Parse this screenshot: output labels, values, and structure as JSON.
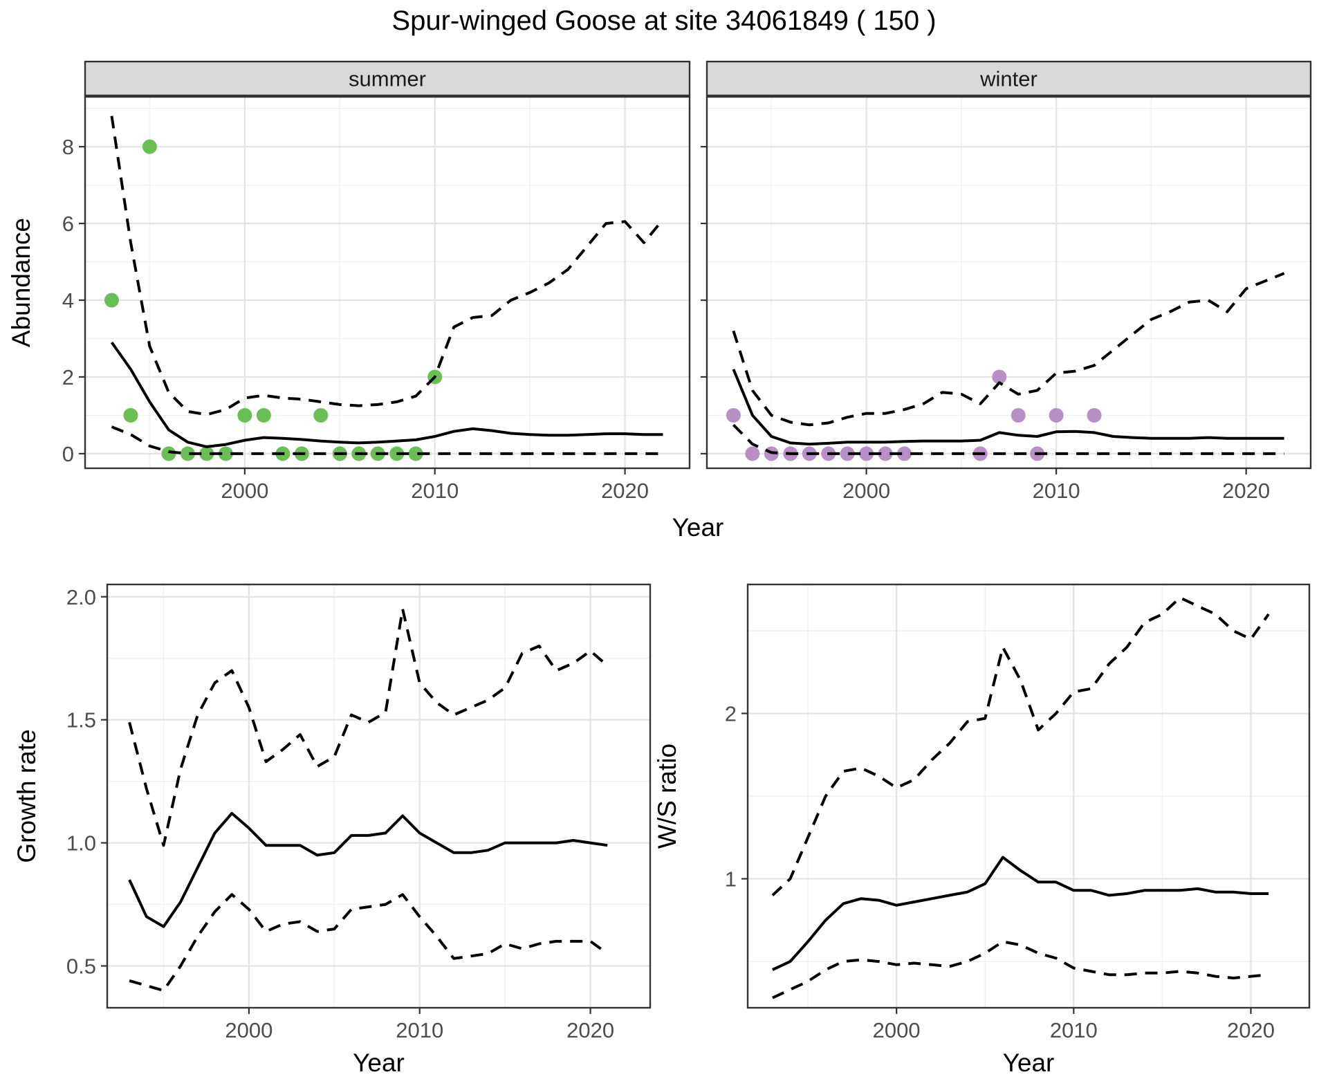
{
  "title": "Spur-winged Goose at site 34061849 ( 150 )",
  "theme": {
    "background": "#ffffff",
    "panel_bg": "#ffffff",
    "grid_major": "#e4e4e4",
    "grid_minor": "#f1f1f1",
    "panel_border": "#333333",
    "strip_bg": "#d9d9d9",
    "strip_text_color": "#1a1a1a",
    "axis_text_color": "#4d4d4d",
    "axis_title_color": "#000000",
    "line_color": "#000000",
    "point_green": "#6abf54",
    "point_purple": "#b690c7"
  },
  "chart_data": [
    {
      "id": "abundance-summer",
      "type": "line",
      "facet_label": "summer",
      "xlabel": "Year",
      "ylabel": "Abundance",
      "xlim": [
        1991.6,
        2023.4
      ],
      "ylim": [
        -0.38,
        9.3
      ],
      "xticks": [
        2000,
        2010,
        2020
      ],
      "xtick_labels": [
        "2000",
        "2010",
        "2020"
      ],
      "xminor": [
        1995,
        2005,
        2015
      ],
      "yticks": [
        0,
        2,
        4,
        6,
        8
      ],
      "ytick_labels": [
        "0",
        "2",
        "4",
        "6",
        "8"
      ],
      "yminor": [
        1,
        3,
        5,
        7,
        9
      ],
      "show_y_labels": true,
      "x": [
        1993,
        1994,
        1995,
        1996,
        1997,
        1998,
        1999,
        2000,
        2001,
        2002,
        2003,
        2004,
        2005,
        2006,
        2007,
        2008,
        2009,
        2010,
        2011,
        2012,
        2013,
        2014,
        2015,
        2016,
        2017,
        2018,
        2019,
        2020,
        2021,
        2022
      ],
      "series": [
        {
          "name": "lower-ci",
          "style": "dashed",
          "values": [
            0.7,
            0.5,
            0.2,
            0.05,
            0,
            0,
            0,
            0,
            0,
            0,
            0,
            0,
            0,
            0,
            0,
            0,
            0,
            0,
            0,
            0,
            0,
            0,
            0,
            0,
            0,
            0,
            0,
            0,
            0,
            0
          ]
        },
        {
          "name": "median",
          "style": "solid",
          "values": [
            2.9,
            2.2,
            1.35,
            0.62,
            0.3,
            0.18,
            0.24,
            0.35,
            0.42,
            0.4,
            0.37,
            0.33,
            0.3,
            0.28,
            0.3,
            0.33,
            0.36,
            0.45,
            0.58,
            0.65,
            0.6,
            0.53,
            0.5,
            0.48,
            0.48,
            0.5,
            0.52,
            0.52,
            0.5,
            0.5
          ]
        },
        {
          "name": "upper-ci",
          "style": "dashed",
          "values": [
            8.8,
            5.5,
            2.8,
            1.6,
            1.1,
            1.02,
            1.15,
            1.45,
            1.52,
            1.45,
            1.42,
            1.35,
            1.28,
            1.25,
            1.28,
            1.35,
            1.5,
            2.0,
            3.3,
            3.55,
            3.6,
            4.0,
            4.2,
            4.45,
            4.8,
            5.4,
            6.0,
            6.05,
            5.5,
            6.1
          ]
        }
      ],
      "points": {
        "color_key": "point_green",
        "data": [
          [
            1993,
            4
          ],
          [
            1994,
            1
          ],
          [
            1995,
            8
          ],
          [
            1996,
            0
          ],
          [
            1997,
            0
          ],
          [
            1998,
            0
          ],
          [
            1999,
            0
          ],
          [
            2000,
            1
          ],
          [
            2001,
            1
          ],
          [
            2002,
            0
          ],
          [
            2003,
            0
          ],
          [
            2004,
            1
          ],
          [
            2005,
            0
          ],
          [
            2006,
            0
          ],
          [
            2007,
            0
          ],
          [
            2008,
            0
          ],
          [
            2009,
            0
          ],
          [
            2010,
            2
          ]
        ]
      }
    },
    {
      "id": "abundance-winter",
      "type": "line",
      "facet_label": "winter",
      "xlabel": "Year",
      "ylabel": "",
      "xlim": [
        1991.6,
        2023.4
      ],
      "ylim": [
        -0.38,
        9.3
      ],
      "xticks": [
        2000,
        2010,
        2020
      ],
      "xtick_labels": [
        "2000",
        "2010",
        "2020"
      ],
      "xminor": [
        1995,
        2005,
        2015
      ],
      "yticks": [
        0,
        2,
        4,
        6,
        8
      ],
      "ytick_labels": [
        "0",
        "2",
        "4",
        "6",
        "8"
      ],
      "yminor": [
        1,
        3,
        5,
        7,
        9
      ],
      "show_y_labels": false,
      "x": [
        1993,
        1994,
        1995,
        1996,
        1997,
        1998,
        1999,
        2000,
        2001,
        2002,
        2003,
        2004,
        2005,
        2006,
        2007,
        2008,
        2009,
        2010,
        2011,
        2012,
        2013,
        2014,
        2015,
        2016,
        2017,
        2018,
        2019,
        2020,
        2021,
        2022
      ],
      "series": [
        {
          "name": "lower-ci",
          "style": "dashed",
          "values": [
            0.75,
            0.25,
            0.03,
            0,
            0,
            0,
            0,
            0,
            0,
            0,
            0,
            0,
            0,
            0,
            0,
            0,
            0,
            0,
            0,
            0,
            0,
            0,
            0,
            0,
            0,
            0,
            0,
            0,
            0,
            0
          ]
        },
        {
          "name": "median",
          "style": "solid",
          "values": [
            2.2,
            1.0,
            0.45,
            0.28,
            0.25,
            0.27,
            0.3,
            0.3,
            0.3,
            0.32,
            0.33,
            0.33,
            0.33,
            0.35,
            0.55,
            0.48,
            0.45,
            0.57,
            0.58,
            0.55,
            0.45,
            0.42,
            0.4,
            0.4,
            0.4,
            0.42,
            0.4,
            0.4,
            0.4,
            0.4
          ]
        },
        {
          "name": "upper-ci",
          "style": "dashed",
          "values": [
            3.2,
            1.65,
            1.0,
            0.82,
            0.75,
            0.8,
            0.95,
            1.05,
            1.05,
            1.15,
            1.3,
            1.6,
            1.55,
            1.3,
            1.85,
            1.55,
            1.65,
            2.1,
            2.15,
            2.3,
            2.7,
            3.1,
            3.5,
            3.7,
            3.95,
            4.0,
            3.7,
            4.3,
            4.5,
            4.7
          ]
        }
      ],
      "points": {
        "color_key": "point_purple",
        "data": [
          [
            1993,
            1
          ],
          [
            1994,
            0
          ],
          [
            1995,
            0
          ],
          [
            1996,
            0
          ],
          [
            1997,
            0
          ],
          [
            1998,
            0
          ],
          [
            1999,
            0
          ],
          [
            2000,
            0
          ],
          [
            2001,
            0
          ],
          [
            2002,
            0
          ],
          [
            2006,
            0
          ],
          [
            2007,
            2
          ],
          [
            2008,
            1
          ],
          [
            2009,
            0
          ],
          [
            2010,
            1
          ],
          [
            2012,
            1
          ]
        ]
      }
    },
    {
      "id": "growth-rate",
      "type": "line",
      "facet_label": "",
      "xlabel": "Year",
      "ylabel": "Growth rate",
      "xlim": [
        1991.7,
        2023.5
      ],
      "ylim": [
        0.33,
        2.05
      ],
      "xticks": [
        2000,
        2010,
        2020
      ],
      "xtick_labels": [
        "2000",
        "2010",
        "2020"
      ],
      "xminor": [
        1995,
        2005,
        2015
      ],
      "yticks": [
        0.5,
        1.0,
        1.5,
        2.0
      ],
      "ytick_labels": [
        "0.5",
        "1.0",
        "1.5",
        "2.0"
      ],
      "yminor": [
        0.75,
        1.25,
        1.75
      ],
      "show_y_labels": true,
      "x": [
        1993,
        1994,
        1995,
        1996,
        1997,
        1998,
        1999,
        2000,
        2001,
        2002,
        2003,
        2004,
        2005,
        2006,
        2007,
        2008,
        2009,
        2010,
        2011,
        2012,
        2013,
        2014,
        2015,
        2016,
        2017,
        2018,
        2019,
        2020,
        2021
      ],
      "series": [
        {
          "name": "lower-ci",
          "style": "dashed",
          "values": [
            0.44,
            0.42,
            0.4,
            0.5,
            0.62,
            0.72,
            0.79,
            0.73,
            0.64,
            0.67,
            0.68,
            0.64,
            0.65,
            0.73,
            0.74,
            0.75,
            0.79,
            0.7,
            0.62,
            0.53,
            0.54,
            0.55,
            0.59,
            0.57,
            0.59,
            0.6,
            0.6,
            0.6,
            0.55
          ]
        },
        {
          "name": "median",
          "style": "solid",
          "values": [
            0.85,
            0.7,
            0.66,
            0.76,
            0.9,
            1.04,
            1.12,
            1.06,
            0.99,
            0.99,
            0.99,
            0.95,
            0.96,
            1.03,
            1.03,
            1.04,
            1.11,
            1.04,
            1.0,
            0.96,
            0.96,
            0.97,
            1.0,
            1.0,
            1.0,
            1.0,
            1.01,
            1.0,
            0.99
          ]
        },
        {
          "name": "upper-ci",
          "style": "dashed",
          "values": [
            1.49,
            1.22,
            0.99,
            1.3,
            1.52,
            1.65,
            1.7,
            1.55,
            1.33,
            1.38,
            1.44,
            1.31,
            1.35,
            1.52,
            1.49,
            1.53,
            1.95,
            1.65,
            1.57,
            1.52,
            1.55,
            1.58,
            1.63,
            1.77,
            1.8,
            1.7,
            1.73,
            1.78,
            1.72
          ]
        }
      ],
      "points": null
    },
    {
      "id": "ws-ratio",
      "type": "line",
      "facet_label": "",
      "xlabel": "Year",
      "ylabel": "W/S ratio",
      "xlim": [
        1991.6,
        2023.3
      ],
      "ylim": [
        0.22,
        2.78
      ],
      "xticks": [
        2000,
        2010,
        2020
      ],
      "xtick_labels": [
        "2000",
        "2010",
        "2020"
      ],
      "xminor": [
        1995,
        2005,
        2015
      ],
      "yticks": [
        1,
        2
      ],
      "ytick_labels": [
        "1",
        "2"
      ],
      "yminor": [
        0.5,
        1.5,
        2.5
      ],
      "show_y_labels": true,
      "x": [
        1993,
        1994,
        1995,
        1996,
        1997,
        1998,
        1999,
        2000,
        2001,
        2002,
        2003,
        2004,
        2005,
        2006,
        2007,
        2008,
        2009,
        2010,
        2011,
        2012,
        2013,
        2014,
        2015,
        2016,
        2017,
        2018,
        2019,
        2020,
        2021
      ],
      "series": [
        {
          "name": "lower-ci",
          "style": "dashed",
          "values": [
            0.28,
            0.33,
            0.38,
            0.45,
            0.5,
            0.51,
            0.5,
            0.48,
            0.49,
            0.48,
            0.47,
            0.5,
            0.55,
            0.62,
            0.6,
            0.55,
            0.52,
            0.46,
            0.44,
            0.42,
            0.42,
            0.43,
            0.43,
            0.44,
            0.43,
            0.41,
            0.4,
            0.41,
            0.42
          ]
        },
        {
          "name": "median",
          "style": "solid",
          "values": [
            0.45,
            0.5,
            0.62,
            0.75,
            0.85,
            0.88,
            0.87,
            0.84,
            0.86,
            0.88,
            0.9,
            0.92,
            0.97,
            1.13,
            1.05,
            0.98,
            0.98,
            0.93,
            0.93,
            0.9,
            0.91,
            0.93,
            0.93,
            0.93,
            0.94,
            0.92,
            0.92,
            0.91,
            0.91
          ]
        },
        {
          "name": "upper-ci",
          "style": "dashed",
          "values": [
            0.9,
            1.0,
            1.25,
            1.5,
            1.65,
            1.67,
            1.62,
            1.55,
            1.6,
            1.72,
            1.82,
            1.95,
            1.97,
            2.4,
            2.2,
            1.9,
            2.0,
            2.13,
            2.15,
            2.3,
            2.4,
            2.55,
            2.6,
            2.7,
            2.65,
            2.6,
            2.5,
            2.45,
            2.6
          ]
        }
      ],
      "points": null
    }
  ]
}
